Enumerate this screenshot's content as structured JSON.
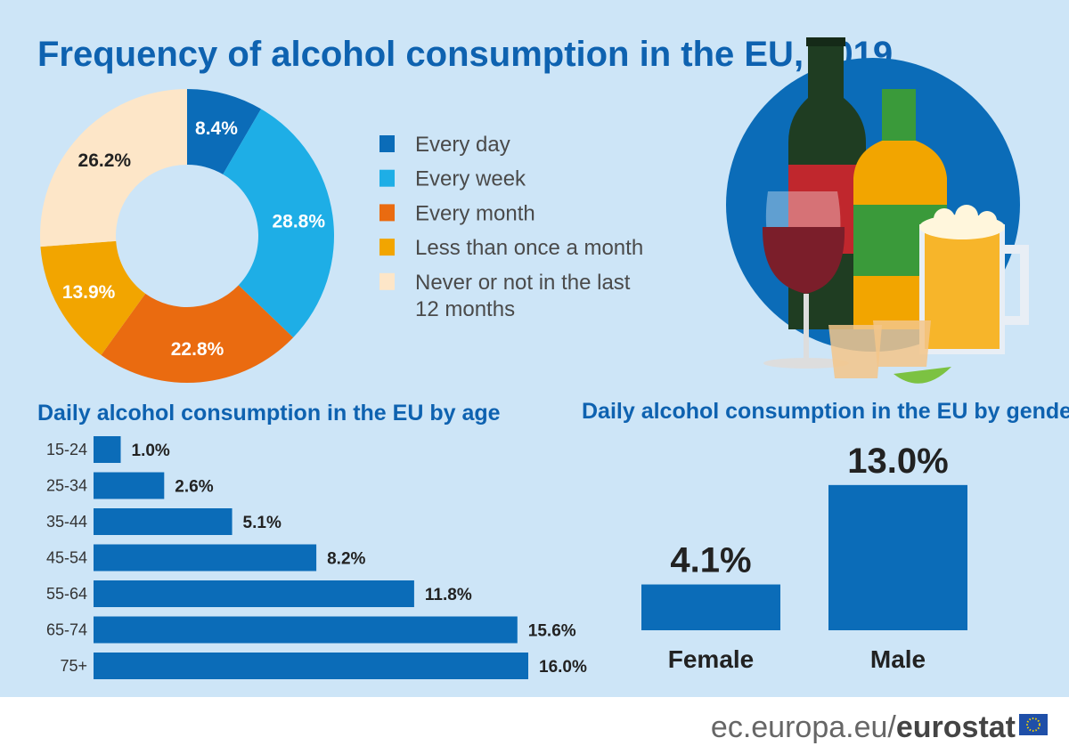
{
  "title": "Frequency of alcohol consumption in the EU, 2019",
  "chart_data": [
    {
      "type": "pie",
      "variant": "donut",
      "categories": [
        "Every day",
        "Every week",
        "Every month",
        "Less than once a month",
        "Never or not in the last 12 months"
      ],
      "legend_lines": [
        [
          "Every day"
        ],
        [
          "Every week"
        ],
        [
          "Every month"
        ],
        [
          "Less than once a month"
        ],
        [
          "Never or not in the last",
          "12 months"
        ]
      ],
      "values": [
        8.4,
        28.8,
        22.8,
        13.9,
        26.2
      ],
      "labels": [
        "8.4%",
        "28.8%",
        "22.8%",
        "13.9%",
        "26.2%"
      ],
      "colors": [
        "#0b6cb8",
        "#1eaee6",
        "#ea6b10",
        "#f2a500",
        "#fde6c8"
      ],
      "label_colors": [
        "#ffffff",
        "#ffffff",
        "#ffffff",
        "#ffffff",
        "#222222"
      ],
      "legend": "right"
    },
    {
      "type": "bar",
      "orientation": "horizontal",
      "title": "Daily alcohol consumption in the EU by age",
      "categories": [
        "15-24",
        "25-34",
        "35-44",
        "45-54",
        "55-64",
        "65-74",
        "75+"
      ],
      "values": [
        1.0,
        2.6,
        5.1,
        8.2,
        11.8,
        15.6,
        16.0
      ],
      "labels": [
        "1.0%",
        "2.6%",
        "5.1%",
        "8.2%",
        "11.8%",
        "15.6%",
        "16.0%"
      ],
      "color": "#0b6cb8"
    },
    {
      "type": "bar",
      "title": "Daily alcohol consumption in the EU by gender",
      "categories": [
        "Female",
        "Male"
      ],
      "values": [
        4.1,
        13.0
      ],
      "labels": [
        "4.1%",
        "13.0%"
      ],
      "color": "#0b6cb8"
    }
  ],
  "footer": {
    "url_prefix": "ec.europa.eu/",
    "brand": "eurostat"
  },
  "colors": {
    "background": "#cde5f7",
    "accent": "#0e62b0"
  }
}
